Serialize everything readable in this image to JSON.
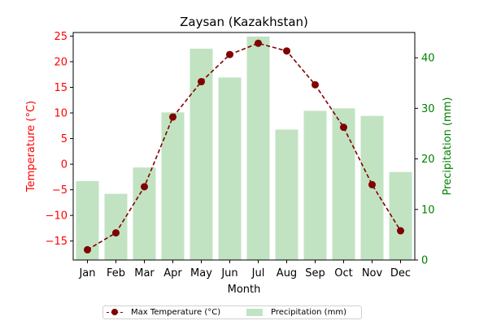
{
  "chart_data": {
    "type": "bar",
    "title": "Zaysan (Kazakhstan)",
    "xlabel": "Month",
    "categories": [
      "Jan",
      "Feb",
      "Mar",
      "Apr",
      "May",
      "Jun",
      "Jul",
      "Aug",
      "Sep",
      "Oct",
      "Nov",
      "Dec"
    ],
    "series": [
      {
        "name": "Max Temperature (°C)",
        "type": "line",
        "axis": "left",
        "color": "#800000",
        "line_style": "dashed",
        "marker": "circle",
        "values": [
          -16.7,
          -13.4,
          -4.4,
          9.2,
          16.1,
          21.4,
          23.6,
          22.1,
          15.5,
          7.2,
          -4.0,
          -13.0
        ]
      },
      {
        "name": "Precipitation (mm)",
        "type": "bar",
        "axis": "right",
        "color": "#4caf50",
        "alpha": 0.35,
        "values": [
          15.6,
          13.1,
          18.3,
          29.2,
          41.8,
          36.1,
          44.2,
          25.8,
          29.5,
          30.0,
          28.5,
          17.4
        ]
      }
    ],
    "y_left": {
      "label": "Temperature (°C)",
      "label_color": "#ff0000",
      "ticks": [
        -15,
        -10,
        -5,
        0,
        5,
        10,
        15,
        20,
        25
      ],
      "tick_labels": [
        "−15",
        "−10",
        "−5",
        "0",
        "5",
        "10",
        "15",
        "20",
        "25"
      ],
      "ylim": [
        -18.7,
        25.7
      ]
    },
    "y_right": {
      "label": "Precipitation (mm)",
      "label_color": "#008000",
      "ticks": [
        0,
        10,
        20,
        30,
        40
      ],
      "tick_labels": [
        "0",
        "10",
        "20",
        "30",
        "40"
      ],
      "ylim": [
        0,
        45.0
      ]
    },
    "legend_position": "bottom-center",
    "grid": false
  }
}
